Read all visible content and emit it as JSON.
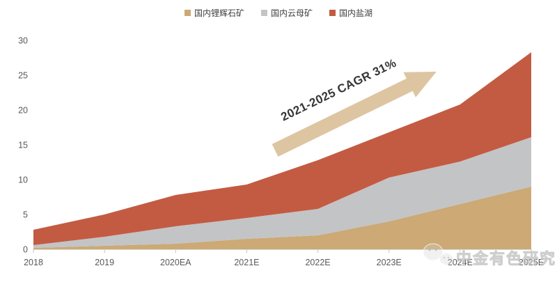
{
  "legend": {
    "position": "top"
  },
  "annotation": {
    "text": "2021-2025 CAGR 31%",
    "text_color": "#363636",
    "arrow_color": "#DEC5A2"
  },
  "watermark": {
    "text": "中金有色研究",
    "icon": "wechat-icon"
  },
  "axis": {
    "line_color": "#D9D9D9",
    "tick_color": "#BFBFBF",
    "label_color": "#595959"
  },
  "chart_data": {
    "type": "area",
    "stacked": true,
    "title": "",
    "xlabel": "",
    "ylabel": "",
    "x": [
      "2018",
      "2019",
      "2020EA",
      "2021E",
      "2022E",
      "2023E",
      "2024E",
      "2025E"
    ],
    "series": [
      {
        "name": "国内锂辉石矿",
        "color": "#CCA975",
        "values": [
          0.2,
          0.5,
          0.8,
          1.5,
          2.0,
          4.0,
          6.5,
          9.0
        ]
      },
      {
        "name": "国内云母矿",
        "color": "#C3C4C6",
        "values": [
          0.4,
          1.3,
          2.5,
          3.0,
          3.8,
          6.3,
          6.1,
          7.1
        ]
      },
      {
        "name": "国内盐湖",
        "color": "#C35B42",
        "values": [
          2.2,
          3.2,
          4.5,
          4.8,
          7.0,
          6.5,
          8.2,
          12.2
        ]
      }
    ],
    "totals": [
      2.8,
      5.0,
      7.8,
      9.3,
      12.8,
      16.8,
      20.8,
      28.3
    ],
    "ylim": [
      0,
      30
    ],
    "yticks": [
      0,
      5,
      10,
      15,
      20,
      25,
      30
    ],
    "grid": false,
    "legend_position": "top"
  }
}
